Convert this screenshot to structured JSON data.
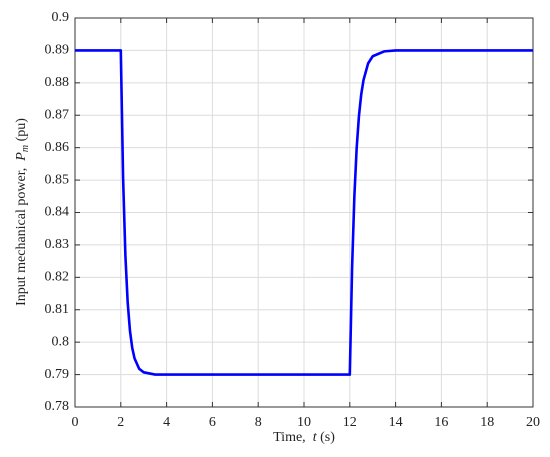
{
  "chart_data": {
    "type": "line",
    "xlabel": [
      "Time,  ",
      "t",
      " (s)"
    ],
    "ylabel": [
      "Input mechanical power,  ",
      "P",
      "m",
      " (pu)"
    ],
    "x": [
      0,
      2,
      2.1,
      2.2,
      2.3,
      2.4,
      2.5,
      2.6,
      2.8,
      3,
      3.5,
      4,
      12,
      12.1,
      12.2,
      12.3,
      12.4,
      12.5,
      12.6,
      12.8,
      13,
      13.5,
      14,
      20
    ],
    "values": [
      0.89,
      0.89,
      0.8507,
      0.8268,
      0.8123,
      0.8035,
      0.7982,
      0.795,
      0.7918,
      0.7907,
      0.79,
      0.79,
      0.79,
      0.823,
      0.8451,
      0.8599,
      0.8698,
      0.8765,
      0.8809,
      0.886,
      0.8882,
      0.8897,
      0.89,
      0.89
    ],
    "color": "#0000ff",
    "xlim": [
      0,
      20
    ],
    "xticks": [
      0,
      2,
      4,
      6,
      8,
      10,
      12,
      14,
      16,
      18,
      20
    ],
    "ylim": [
      0.78,
      0.9
    ],
    "yticks": [
      0.78,
      0.79,
      0.8,
      0.81,
      0.82,
      0.83,
      0.84,
      0.85,
      0.86,
      0.87,
      0.88,
      0.89,
      0.9
    ],
    "grid": true
  }
}
